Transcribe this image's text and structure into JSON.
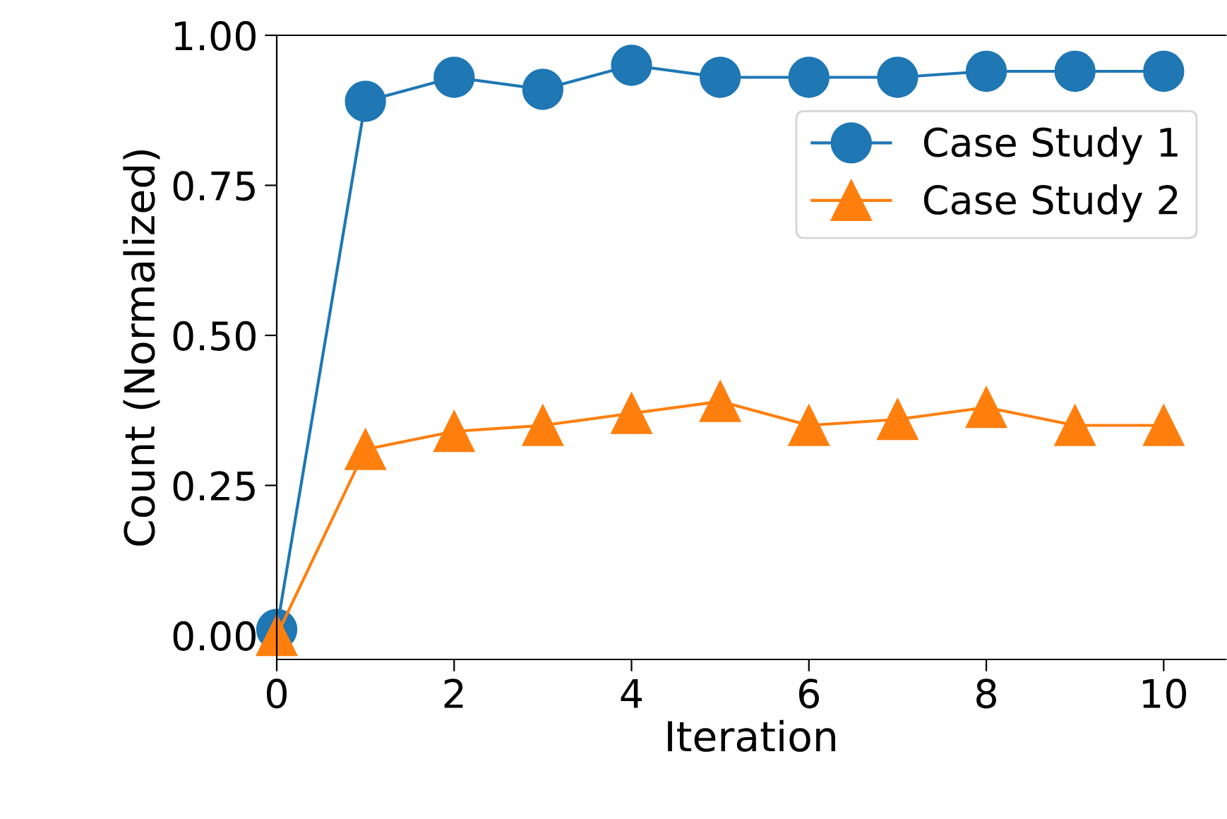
{
  "chart_data": {
    "type": "line",
    "xlabel": "Iteration",
    "ylabel": "Count (Normalized)",
    "x": [
      0,
      1,
      2,
      3,
      4,
      5,
      6,
      7,
      8,
      9,
      10
    ],
    "series": [
      {
        "name": "Case Study 1",
        "color": "#1f77b4",
        "marker": "circle",
        "values": [
          0.01,
          0.89,
          0.93,
          0.91,
          0.95,
          0.93,
          0.93,
          0.93,
          0.94,
          0.94,
          0.94
        ]
      },
      {
        "name": "Case Study 2",
        "color": "#ff7f0e",
        "marker": "triangle",
        "values": [
          0.0,
          0.31,
          0.34,
          0.35,
          0.37,
          0.39,
          0.35,
          0.36,
          0.38,
          0.35,
          0.35
        ]
      }
    ],
    "xlim": [
      0,
      10.7
    ],
    "ylim": [
      -0.04,
      1.0
    ],
    "xticks": [
      0,
      2,
      4,
      6,
      8,
      10
    ],
    "yticks": [
      {
        "value": 0,
        "label": "0.00"
      },
      {
        "value": 0.25,
        "label": "0.25"
      },
      {
        "value": 0.5,
        "label": "0.50"
      },
      {
        "value": 0.75,
        "label": "0.75"
      },
      {
        "value": 1.0,
        "label": "1.00"
      }
    ],
    "legend": "top right",
    "grid": false
  }
}
